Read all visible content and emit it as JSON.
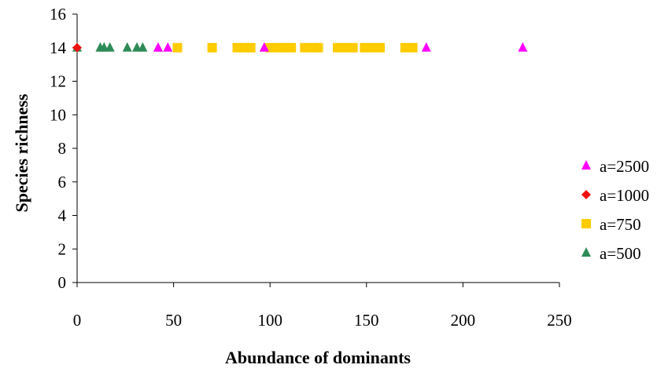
{
  "chart_data": {
    "type": "scatter",
    "title": "",
    "xlabel": "Abundance of dominants",
    "ylabel": "Species richness",
    "xlim": [
      0,
      250
    ],
    "ylim": [
      0,
      16
    ],
    "xticks": [
      0,
      50,
      100,
      150,
      200,
      250
    ],
    "yticks": [
      0,
      2,
      4,
      6,
      8,
      10,
      12,
      14,
      16
    ],
    "grid": false,
    "legend_position": "right",
    "series": [
      {
        "name": "a=2500",
        "marker": "triangle",
        "color": "#ff00ff",
        "x": [
          42,
          47,
          97,
          181,
          231
        ],
        "y": [
          14,
          14,
          14,
          14,
          14
        ]
      },
      {
        "name": "a=1000",
        "marker": "diamond",
        "color": "#ee1111",
        "x": [
          0
        ],
        "y": [
          14
        ]
      },
      {
        "name": "a=750",
        "marker": "square",
        "color": "#ffcc00",
        "x": [
          52,
          70,
          83,
          87,
          90,
          100,
          104,
          108,
          111,
          118,
          122,
          125,
          135,
          139,
          143,
          149,
          153,
          157,
          170,
          174
        ],
        "y": [
          14,
          14,
          14,
          14,
          14,
          14,
          14,
          14,
          14,
          14,
          14,
          14,
          14,
          14,
          14,
          14,
          14,
          14,
          14,
          14
        ]
      },
      {
        "name": "a=500",
        "marker": "triangle",
        "color": "#2e8b57",
        "x": [
          0,
          12,
          14,
          17,
          26,
          31,
          34,
          42
        ],
        "y": [
          14,
          14,
          14,
          14,
          14,
          14,
          14,
          14
        ]
      }
    ]
  }
}
